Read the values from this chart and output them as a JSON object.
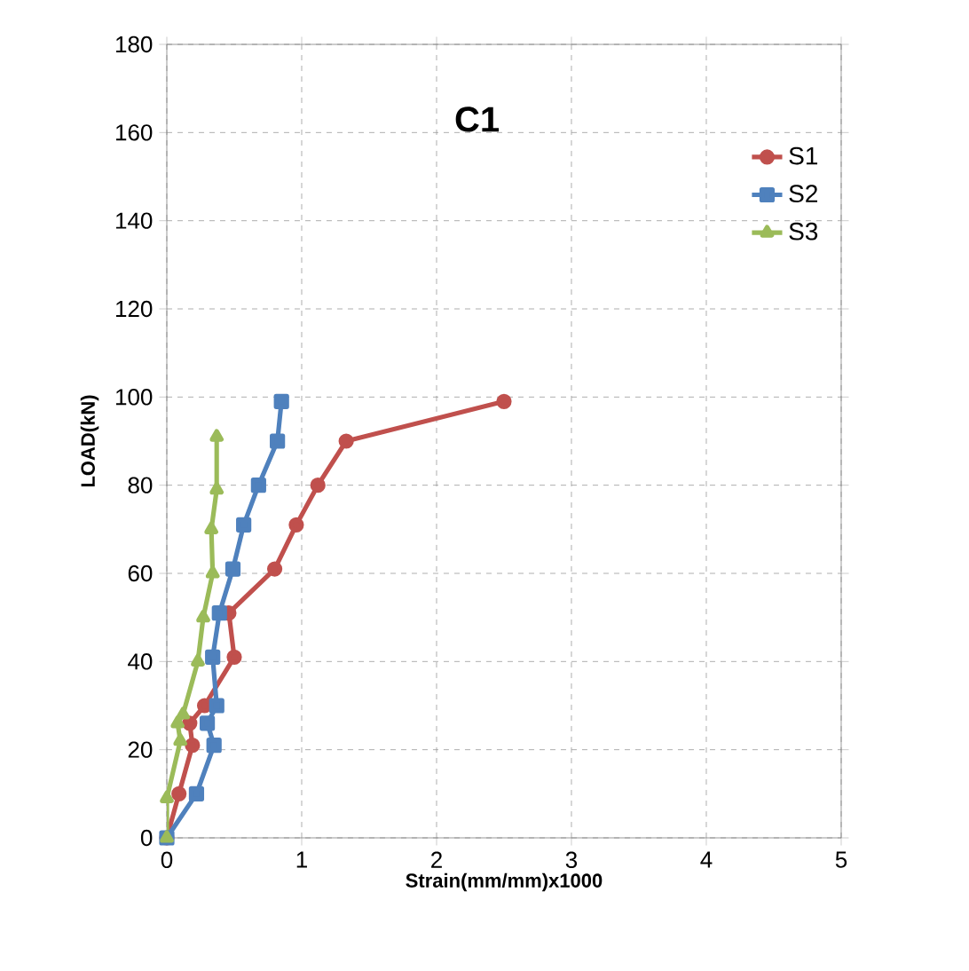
{
  "chart_data": {
    "type": "line",
    "title": "C1",
    "xlabel": "Strain(mm/mm)x1000",
    "ylabel": "LOAD(kN)",
    "xlim": [
      0,
      5
    ],
    "ylim": [
      0,
      180
    ],
    "xticks": [
      0,
      1,
      2,
      3,
      4,
      5
    ],
    "yticks": [
      0,
      20,
      40,
      60,
      80,
      100,
      120,
      140,
      160,
      180
    ],
    "grid": true,
    "legend": "top right",
    "series": [
      {
        "name": "S1",
        "color": "#c0504d",
        "marker": "circle",
        "x": [
          0,
          0.09,
          0.19,
          0.17,
          0.28,
          0.5,
          0.46,
          0.8,
          0.96,
          1.12,
          1.33,
          2.5
        ],
        "values": [
          0,
          10,
          21,
          26,
          30,
          41,
          51,
          61,
          71,
          80,
          90,
          99
        ]
      },
      {
        "name": "S2",
        "color": "#4f81bd",
        "marker": "square",
        "x": [
          0,
          0.22,
          0.35,
          0.3,
          0.37,
          0.34,
          0.39,
          0.49,
          0.57,
          0.68,
          0.82,
          0.85
        ],
        "values": [
          0,
          10,
          21,
          26,
          30,
          41,
          51,
          61,
          71,
          80,
          90,
          99
        ]
      },
      {
        "name": "S3",
        "color": "#9bbb59",
        "marker": "triangle",
        "x": [
          0,
          0,
          0.1,
          0.08,
          0.12,
          0.23,
          0.27,
          0.34,
          0.33,
          0.37,
          0.37
        ],
        "values": [
          0,
          9,
          22,
          26,
          28,
          40,
          50,
          60,
          70,
          79,
          91
        ]
      }
    ]
  }
}
